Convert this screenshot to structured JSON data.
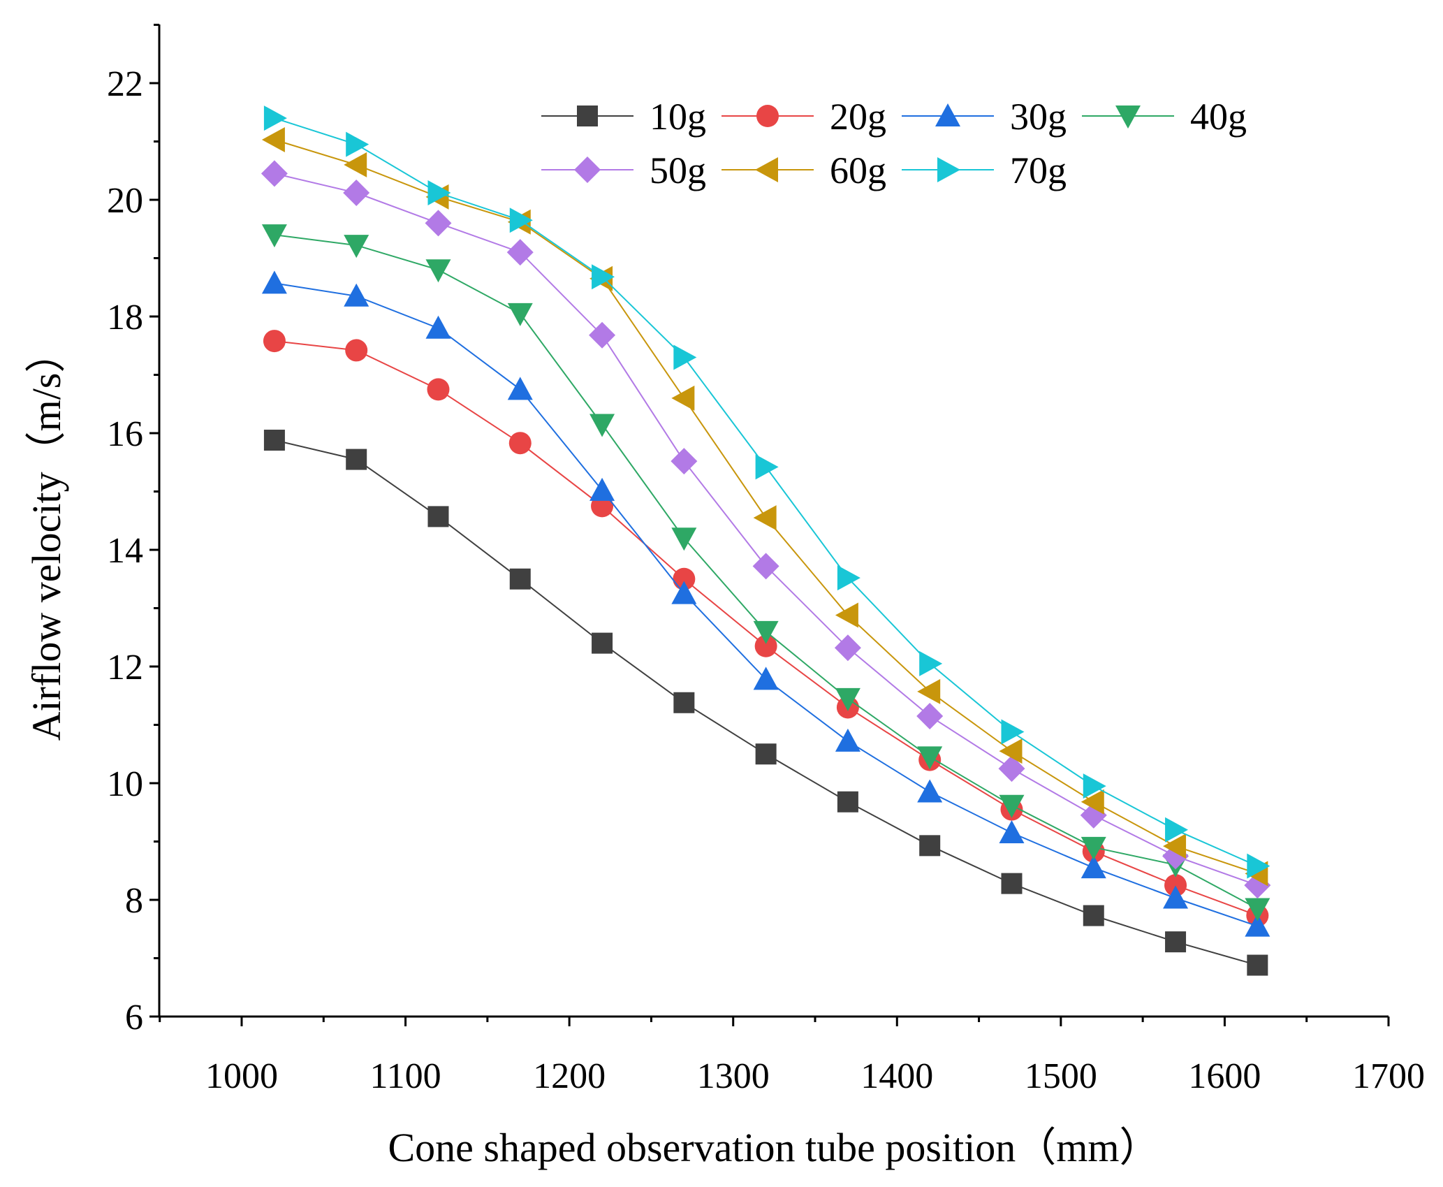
{
  "chart_data": {
    "type": "line",
    "title": "",
    "xlabel": "Cone shaped observation tube position（mm）",
    "ylabel": "Airflow velocity（m/s）",
    "xlim": [
      950,
      1700
    ],
    "ylim": [
      6,
      23
    ],
    "xticks": [
      1000,
      1100,
      1200,
      1300,
      1400,
      1500,
      1600,
      1700
    ],
    "xtick_labels": [
      "1000",
      "1100",
      "1200",
      "1300",
      "1400",
      "1500",
      "1600",
      "1700"
    ],
    "yticks": [
      6,
      8,
      10,
      12,
      14,
      16,
      18,
      20,
      22
    ],
    "ytick_labels": [
      "6",
      "8",
      "10",
      "12",
      "14",
      "16",
      "18",
      "20",
      "22"
    ],
    "grid": false,
    "legend_position": "top-right",
    "x": [
      1020,
      1070,
      1120,
      1170,
      1220,
      1270,
      1320,
      1370,
      1420,
      1470,
      1520,
      1570,
      1620
    ],
    "series": [
      {
        "name": "10g",
        "color": "#404040",
        "marker": "square",
        "values": [
          15.88,
          15.55,
          14.57,
          13.5,
          12.4,
          11.38,
          10.5,
          9.68,
          8.93,
          8.28,
          7.73,
          7.28,
          6.88
        ]
      },
      {
        "name": "20g",
        "color": "#E84545",
        "marker": "circle",
        "values": [
          17.58,
          17.42,
          16.75,
          15.83,
          14.75,
          13.5,
          12.35,
          11.3,
          10.4,
          9.55,
          8.83,
          8.25,
          7.73
        ]
      },
      {
        "name": "30g",
        "color": "#1F6FE0",
        "marker": "triangle-up",
        "values": [
          18.57,
          18.35,
          17.8,
          16.75,
          15.02,
          13.25,
          11.78,
          10.72,
          9.85,
          9.15,
          8.55,
          8.03,
          7.55
        ]
      },
      {
        "name": "40g",
        "color": "#2EA865",
        "marker": "triangle-down",
        "values": [
          19.4,
          19.22,
          18.8,
          18.05,
          16.15,
          14.2,
          12.6,
          11.45,
          10.45,
          9.62,
          8.9,
          8.6,
          7.85
        ]
      },
      {
        "name": "50g",
        "color": "#B27AE6",
        "marker": "diamond",
        "values": [
          20.45,
          20.12,
          19.6,
          19.1,
          17.68,
          15.52,
          13.72,
          12.32,
          11.15,
          10.25,
          9.45,
          8.75,
          8.25
        ]
      },
      {
        "name": "60g",
        "color": "#C8960C",
        "marker": "triangle-left",
        "values": [
          21.03,
          20.6,
          20.05,
          19.62,
          18.65,
          16.6,
          14.55,
          12.88,
          11.57,
          10.55,
          9.68,
          8.92,
          8.45
        ]
      },
      {
        "name": "70g",
        "color": "#19C6D6",
        "marker": "triangle-right",
        "values": [
          21.4,
          20.95,
          20.12,
          19.65,
          18.68,
          17.3,
          15.42,
          13.52,
          12.05,
          10.88,
          9.95,
          9.2,
          8.58
        ]
      }
    ]
  }
}
